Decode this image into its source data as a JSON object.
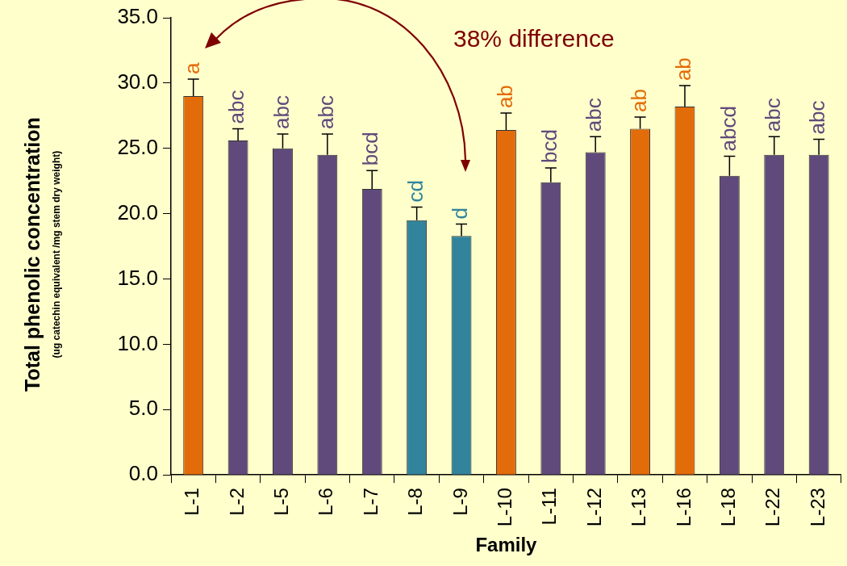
{
  "chart_data": {
    "type": "bar",
    "categories": [
      "L-1",
      "L-2",
      "L-5",
      "L-6",
      "L-7",
      "L-8",
      "L-9",
      "L-10",
      "L-11",
      "L-12",
      "L-13",
      "L-16",
      "L-18",
      "L-22",
      "L-23"
    ],
    "values": [
      29.0,
      25.6,
      25.0,
      24.5,
      21.9,
      19.5,
      18.3,
      26.4,
      22.4,
      24.7,
      26.5,
      28.2,
      22.9,
      24.5,
      24.5
    ],
    "errors": [
      1.3,
      0.9,
      1.1,
      1.6,
      1.4,
      1.0,
      0.9,
      1.3,
      1.1,
      1.2,
      0.9,
      1.6,
      1.5,
      1.4,
      1.2
    ],
    "colors": [
      "#e36c0a",
      "#604a7b",
      "#604a7b",
      "#604a7b",
      "#604a7b",
      "#31849b",
      "#31849b",
      "#e36c0a",
      "#604a7b",
      "#604a7b",
      "#e36c0a",
      "#e36c0a",
      "#604a7b",
      "#604a7b",
      "#604a7b"
    ],
    "xlabel": "Family",
    "ylabel": "Total phenolic concentration\n(ug catechin equivalent /mg stem dry weight)",
    "ylim": [
      0,
      35
    ],
    "yticks": [
      {
        "value": 0,
        "label": "0.0"
      },
      {
        "value": 5,
        "label": "5.0"
      },
      {
        "value": 10,
        "label": "10.0"
      },
      {
        "value": 15,
        "label": "15.0"
      },
      {
        "value": 20,
        "label": "20.0"
      },
      {
        "value": 25,
        "label": "25.0"
      },
      {
        "value": 30,
        "label": "30.0"
      },
      {
        "value": 35,
        "label": "35.0"
      }
    ],
    "grid": false,
    "legend": false,
    "annotations": [
      "38% difference",
      {
        "text": "a",
        "x": "L-1",
        "y": 30.3
      },
      {
        "text": "abc",
        "x": "L-2",
        "y": 26.5
      },
      {
        "text": "abc",
        "x": "L-5",
        "y": 26.1
      },
      {
        "text": "abc",
        "x": "L-6",
        "y": 26.1
      },
      {
        "text": "bcd",
        "x": "L-7",
        "y": 23.3
      },
      {
        "text": "cd",
        "x": "L-8",
        "y": 20.5
      },
      {
        "text": "d",
        "x": "L-9",
        "y": 19.2
      },
      {
        "text": "ab",
        "x": "L-10",
        "y": 27.7
      },
      {
        "text": "bcd",
        "x": "L-11",
        "y": 23.5
      },
      {
        "text": "abc",
        "x": "L-12",
        "y": 25.9
      },
      {
        "text": "ab",
        "x": "L-13",
        "y": 27.4
      },
      {
        "text": "ab",
        "x": "L-16",
        "y": 29.8
      },
      {
        "text": "abcd",
        "x": "L-18",
        "y": 24.4
      },
      {
        "text": "abc",
        "x": "L-22",
        "y": 25.9
      },
      {
        "text": "abc",
        "x": "L-23",
        "y": 25.7
      }
    ]
  }
}
